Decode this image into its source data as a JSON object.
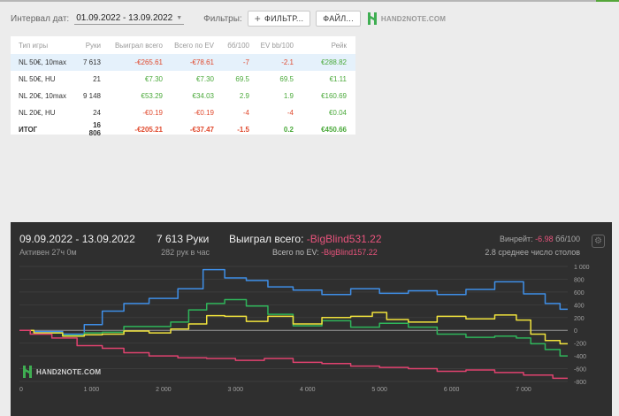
{
  "toolbar": {
    "interval_label": "Интервал дат:",
    "date_range": "01.09.2022 - 13.09.2022",
    "filters_label": "Фильтры:",
    "filter_button": "ФИЛЬТР...",
    "file_button": "ФАЙЛ...",
    "logo_text": "HAND2NOTE.COM"
  },
  "table": {
    "headers": [
      "Тип игры",
      "Руки",
      "Выиграл всего",
      "Всего по EV",
      "бб/100",
      "EV bb/100",
      "Рейк"
    ],
    "rows": [
      [
        "NL 50€, 10max",
        "7 613",
        "-€265.61",
        "-€78.61",
        "-7",
        "-2.1",
        "€288.82"
      ],
      [
        "NL 50€, HU",
        "21",
        "€7.30",
        "€7.30",
        "69.5",
        "69.5",
        "€1.11"
      ],
      [
        "NL 20€, 10max",
        "9 148",
        "€53.29",
        "€34.03",
        "2.9",
        "1.9",
        "€160.69"
      ],
      [
        "NL 20€, HU",
        "24",
        "-€0.19",
        "-€0.19",
        "-4",
        "-4",
        "€0.04"
      ]
    ],
    "total": [
      "ИТОГ",
      "16 806",
      "-€205.21",
      "-€37.47",
      "-1.5",
      "0.2",
      "€450.66"
    ]
  },
  "graph": {
    "date_range": "09.09.2022 - 13.09.2022",
    "active": "Активен 27ч 0м",
    "hands": "7 613 Руки",
    "hands_rate": "282 рук в час",
    "won_label": "Выиграл всего:",
    "won_value": "-BigBlind531.22",
    "ev_label": "Всего по EV:",
    "ev_value": "-BigBlind157.22",
    "winrate_label": "Винрейт:",
    "winrate_value": "-6.98",
    "winrate_unit": "бб/100",
    "tables": "2.8 среднее число столов",
    "watermark": "HAND2NOTE.COM"
  },
  "chart_data": {
    "type": "line",
    "xlim": [
      0,
      7613
    ],
    "ylim": [
      -800,
      1000
    ],
    "x_ticks": [
      "0",
      "1 000",
      "2 000",
      "3 000",
      "4 000",
      "5 000",
      "6 000",
      "7 000"
    ],
    "y_ticks": [
      "1 000",
      "800",
      "600",
      "400",
      "200",
      "0",
      "-200",
      "-400",
      "-600",
      "-800"
    ],
    "series": [
      {
        "color": "#3f8fe8",
        "x": [
          0,
          400,
          800,
          1000,
          1300,
          1600,
          2000,
          2400,
          2700,
          3000,
          3300,
          3600,
          4000,
          4400,
          4800,
          5200,
          5600,
          6000,
          6400,
          6800,
          7200,
          7400,
          7613
        ],
        "y": [
          0,
          -20,
          -60,
          90,
          300,
          420,
          500,
          650,
          950,
          820,
          780,
          680,
          630,
          560,
          650,
          580,
          620,
          560,
          640,
          760,
          570,
          420,
          330
        ]
      },
      {
        "color": "#2fb55a",
        "x": [
          0,
          400,
          800,
          1000,
          1300,
          1600,
          2000,
          2200,
          2500,
          2700,
          3000,
          3300,
          3600,
          4000,
          4400,
          4800,
          5200,
          5600,
          6000,
          6400,
          6800,
          7000,
          7200,
          7400,
          7613
        ],
        "y": [
          0,
          -40,
          -80,
          -40,
          -30,
          60,
          60,
          130,
          320,
          420,
          480,
          380,
          250,
          70,
          150,
          50,
          110,
          50,
          -60,
          -110,
          -90,
          -120,
          -210,
          -300,
          -400
        ]
      },
      {
        "color": "#f0e23c",
        "x": [
          0,
          400,
          800,
          1000,
          1300,
          1600,
          2000,
          2200,
          2500,
          2700,
          3000,
          3300,
          3600,
          4000,
          4400,
          4800,
          5000,
          5200,
          5600,
          6000,
          6400,
          6800,
          7000,
          7200,
          7400,
          7613
        ],
        "y": [
          0,
          -40,
          -90,
          -70,
          -60,
          -10,
          -40,
          20,
          100,
          230,
          220,
          140,
          220,
          100,
          200,
          220,
          280,
          170,
          130,
          220,
          180,
          240,
          160,
          -60,
          -160,
          -210
        ]
      },
      {
        "color": "#e0426f",
        "x": [
          0,
          300,
          600,
          1000,
          1300,
          1600,
          2000,
          2400,
          2800,
          3200,
          3600,
          4000,
          4400,
          4800,
          5200,
          5600,
          6000,
          6400,
          6800,
          7200,
          7613
        ],
        "y": [
          0,
          -60,
          -120,
          -240,
          -280,
          -350,
          -400,
          -430,
          -440,
          -470,
          -440,
          -500,
          -520,
          -560,
          -580,
          -600,
          -640,
          -620,
          -660,
          -700,
          -750
        ]
      }
    ]
  }
}
